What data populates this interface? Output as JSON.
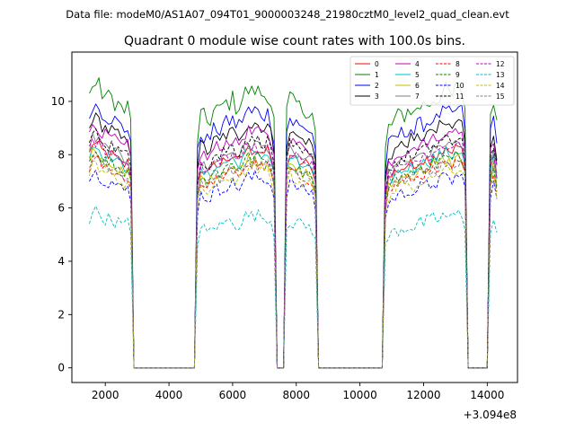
{
  "suptitle": "Data file: modeM0/AS1A07_094T01_9000003248_21980cztM0_level2_quad_clean.evt",
  "chart_data": {
    "type": "line",
    "title": "Quadrant 0 module wise count rates with 100.0s bins.",
    "xlabel": "",
    "ylabel": "",
    "x_offset_label": "+3.094e8",
    "xlim": [
      950,
      14950
    ],
    "ylim": [
      -0.55,
      11.85
    ],
    "xticks": [
      2000,
      4000,
      6000,
      8000,
      10000,
      12000,
      14000
    ],
    "yticks": [
      0,
      2,
      4,
      6,
      8,
      10
    ],
    "grid": false,
    "legend_position": "upper-right",
    "segments": [
      {
        "start": 1500,
        "end": 2800,
        "base": [
          10.05,
          9.82,
          9.74,
          9.67,
          9.47,
          9.39,
          9.28,
          9.31,
          9.19,
          9.08,
          8.95,
          8.84,
          8.98,
          9.08
        ]
      },
      {
        "start": 4900,
        "end": 7300,
        "base": [
          8.53,
          8.68,
          8.6,
          8.46,
          8.56,
          8.82,
          8.93,
          8.79,
          9.06,
          9.1,
          9.16,
          9.23,
          9.03,
          9.04,
          9.24,
          9.46,
          9.56,
          9.45,
          9.59,
          9.49,
          9.44,
          9.38,
          9.47,
          9.14,
          9.15
        ]
      },
      {
        "start": 7700,
        "end": 8600,
        "base": [
          9.44,
          9.3,
          9.08,
          9.1,
          8.94,
          8.91,
          8.94,
          8.8,
          8.75,
          8.67
        ]
      },
      {
        "start": 10800,
        "end": 13300,
        "base": [
          8.02,
          8.26,
          8.37,
          8.54,
          8.63,
          8.71,
          8.72,
          8.86,
          8.91,
          8.72,
          8.99,
          9.04,
          9.05,
          9.13,
          9.09,
          9.34,
          9.2,
          9.42,
          9.46,
          9.51,
          9.44,
          9.34,
          9.58,
          9.6,
          9.53,
          9.62
        ]
      },
      {
        "start": 14100,
        "end": 14300,
        "base": [
          9.4,
          9.3,
          8.9
        ]
      }
    ],
    "series": [
      {
        "name": "0",
        "color": "#ff0000",
        "style": "solid",
        "scale": 0.86,
        "jitter": 0.2
      },
      {
        "name": "1",
        "color": "#008000",
        "style": "solid",
        "scale": 1.09,
        "jitter": 0.38
      },
      {
        "name": "2",
        "color": "#0000ff",
        "style": "solid",
        "scale": 1.01,
        "jitter": 0.3
      },
      {
        "name": "3",
        "color": "#000000",
        "style": "solid",
        "scale": 0.96,
        "jitter": 0.26
      },
      {
        "name": "4",
        "color": "#bf00bf",
        "style": "solid",
        "scale": 0.93,
        "jitter": 0.24
      },
      {
        "name": "5",
        "color": "#00bfbf",
        "style": "solid",
        "scale": 0.85,
        "jitter": 0.22
      },
      {
        "name": "6",
        "color": "#bfbf00",
        "style": "solid",
        "scale": 0.82,
        "jitter": 0.22
      },
      {
        "name": "7",
        "color": "#808080",
        "style": "solid",
        "scale": 0.88,
        "jitter": 0.22
      },
      {
        "name": "8",
        "color": "#ff0000",
        "style": "dashed",
        "scale": 0.8,
        "jitter": 0.2
      },
      {
        "name": "9",
        "color": "#008000",
        "style": "dashed",
        "scale": 0.83,
        "jitter": 0.22
      },
      {
        "name": "10",
        "color": "#0000ff",
        "style": "dashed",
        "scale": 0.75,
        "jitter": 0.24
      },
      {
        "name": "11",
        "color": "#000000",
        "style": "dashed",
        "scale": 0.9,
        "jitter": 0.24
      },
      {
        "name": "12",
        "color": "#bf00bf",
        "style": "dashed",
        "scale": 0.87,
        "jitter": 0.22
      },
      {
        "name": "13",
        "color": "#00bfbf",
        "style": "dashed",
        "scale": 0.6,
        "jitter": 0.28
      },
      {
        "name": "14",
        "color": "#bfbf00",
        "style": "dashed",
        "scale": 0.78,
        "jitter": 0.22
      },
      {
        "name": "15",
        "color": "#808080",
        "style": "dashed",
        "scale": 0.81,
        "jitter": 0.22
      }
    ]
  }
}
